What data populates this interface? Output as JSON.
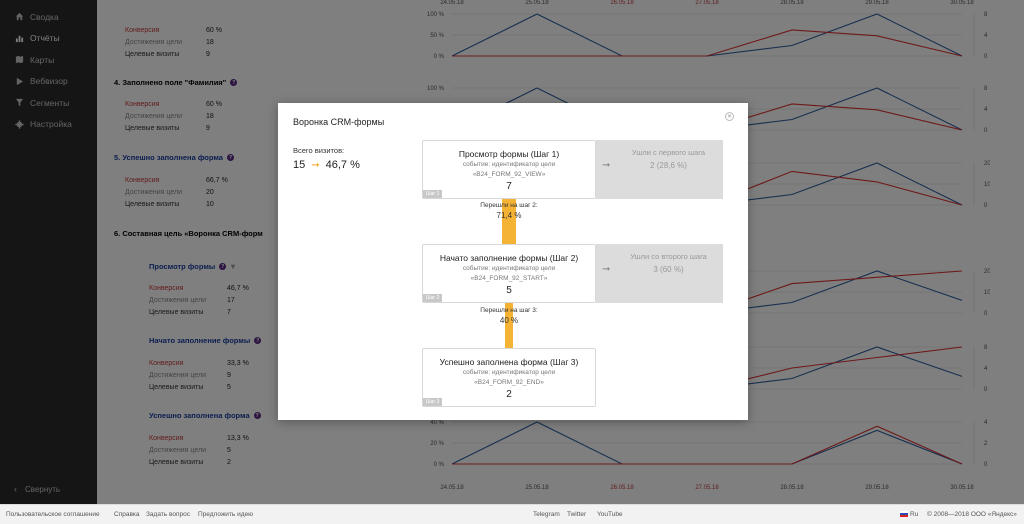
{
  "sidebar": {
    "items": [
      {
        "label": "Сводка",
        "icon": "home-icon"
      },
      {
        "label": "Отчёты",
        "icon": "bar-chart-icon",
        "active": true
      },
      {
        "label": "Карты",
        "icon": "map-icon"
      },
      {
        "label": "Вебвизор",
        "icon": "play-icon"
      },
      {
        "label": "Сегменты",
        "icon": "filter-icon"
      },
      {
        "label": "Настройка",
        "icon": "gear-icon"
      }
    ],
    "collapse_label": "Свернуть"
  },
  "goals": [
    {
      "title": "",
      "metrics": [
        [
          "Конверсия",
          "60 %"
        ],
        [
          "Достижения цели",
          "18"
        ],
        [
          "Целевые визиты",
          "9"
        ]
      ]
    },
    {
      "title": "4.  Заполнено поле \"Фамилия\"",
      "metrics": [
        [
          "Конверсия",
          "60 %"
        ],
        [
          "Достижения цели",
          "18"
        ],
        [
          "Целевые визиты",
          "9"
        ]
      ]
    },
    {
      "title": "5.  Успешно заполнена форма",
      "metrics": [
        [
          "Конверсия",
          "66,7 %"
        ],
        [
          "Достижения цели",
          "20"
        ],
        [
          "Целевые визиты",
          "10"
        ]
      ]
    },
    {
      "title": "6.  Составная цель «Воронка CRM-форм",
      "metrics": []
    },
    {
      "title": "Просмотр формы",
      "metrics": [
        [
          "Конверсия",
          "46,7 %"
        ],
        [
          "Достижения цели",
          "17"
        ],
        [
          "Целевые визиты",
          "7"
        ]
      ]
    },
    {
      "title": "Начато заполнение формы",
      "metrics": [
        [
          "Конверсия",
          "33,3 %"
        ],
        [
          "Достижения цели",
          "9"
        ],
        [
          "Целевые визиты",
          "5"
        ]
      ]
    },
    {
      "title": "Успешно заполнена форма",
      "metrics": [
        [
          "Конверсия",
          "13,3 %"
        ],
        [
          "Достижения цели",
          "5"
        ],
        [
          "Целевые визиты",
          "2"
        ]
      ]
    }
  ],
  "chart_axis": {
    "dates": [
      "24.05.18",
      "25.05.18",
      "26.05.18",
      "27.05.18",
      "28.05.18",
      "29.05.18",
      "30.05.18"
    ],
    "weekend_dates": [
      "26.05.18",
      "27.05.18"
    ]
  },
  "chart_data": [
    {
      "type": "line",
      "left_ticks": [
        "100 %",
        "50 %",
        "0 %"
      ],
      "right_ticks": [
        "8",
        "4",
        "0"
      ],
      "series": [
        {
          "color": "#2f5f9e",
          "values": [
            0,
            100,
            0,
            0,
            25,
            100,
            0
          ]
        },
        {
          "color": "#d33",
          "values": [
            0,
            0,
            0,
            0,
            62,
            48,
            0
          ]
        }
      ]
    },
    {
      "type": "line",
      "left_ticks": [
        "100 %",
        "50 %",
        "0 %"
      ],
      "right_ticks": [
        "8",
        "4",
        "0"
      ],
      "series": [
        {
          "color": "#2f5f9e",
          "values": [
            0,
            100,
            0,
            0,
            25,
            100,
            0
          ]
        },
        {
          "color": "#d33",
          "values": [
            0,
            0,
            0,
            0,
            62,
            48,
            0
          ]
        }
      ]
    },
    {
      "type": "line",
      "left_ticks": [
        "100 %",
        "50 %",
        "0 %"
      ],
      "right_ticks": [
        "20",
        "10",
        "0"
      ],
      "series": [
        {
          "color": "#2f5f9e",
          "values": [
            0,
            100,
            0,
            0,
            25,
            100,
            0
          ]
        },
        {
          "color": "#d33",
          "values": [
            0,
            0,
            0,
            0,
            80,
            55,
            0
          ]
        }
      ]
    },
    {
      "type": "line",
      "left_ticks": [
        "100 %",
        "50 %",
        "0 %"
      ],
      "right_ticks": [
        "20",
        "10",
        "0"
      ],
      "series": [
        {
          "color": "#2f5f9e",
          "values": [
            0,
            100,
            0,
            0,
            25,
            100,
            30
          ]
        },
        {
          "color": "#d33",
          "values": [
            0,
            0,
            0,
            0,
            70,
            85,
            100
          ]
        }
      ]
    },
    {
      "type": "line",
      "left_ticks": [
        "100 %",
        "50 %",
        "0 %"
      ],
      "right_ticks": [
        "8",
        "4",
        "0"
      ],
      "series": [
        {
          "color": "#2f5f9e",
          "values": [
            0,
            100,
            0,
            0,
            25,
            100,
            30
          ]
        },
        {
          "color": "#d33",
          "values": [
            0,
            0,
            0,
            0,
            50,
            75,
            100
          ]
        }
      ]
    },
    {
      "type": "line",
      "left_ticks": [
        "40 %",
        "20 %",
        "0 %"
      ],
      "right_ticks": [
        "4",
        "2",
        "0"
      ],
      "series": [
        {
          "color": "#2f5f9e",
          "values": [
            0,
            100,
            0,
            0,
            0,
            80,
            0
          ]
        },
        {
          "color": "#d33",
          "values": [
            0,
            0,
            0,
            0,
            0,
            90,
            0
          ]
        }
      ]
    }
  ],
  "modal": {
    "title": "Воронка CRM-формы",
    "total_label": "Всего визитов:",
    "total_visits": "15",
    "total_conversion": "46,7 %",
    "steps": [
      {
        "title": "Просмотр формы (Шаг 1)",
        "event": "событие: идентификатор цели",
        "id": "«B24_FORM_92_VIEW»",
        "count": "7",
        "tag": "Шаг 1",
        "left_label": "Ушли с первого шага",
        "left_value": "2 (28,6 %)"
      },
      {
        "title": "Начато заполнение формы (Шаг 2)",
        "event": "событие: идентификатор цели",
        "id": "«B24_FORM_92_START»",
        "count": "5",
        "tag": "Шаг 2",
        "left_label": "Ушли со второго шага",
        "left_value": "3 (60 %)"
      },
      {
        "title": "Успешно заполнена форма (Шаг 3)",
        "event": "событие: идентификатор цели",
        "id": "«B24_FORM_92_END»",
        "count": "2",
        "tag": "Шаг 3"
      }
    ],
    "transitions": [
      {
        "label": "Перешли на шаг 2:",
        "value": "71,4 %",
        "percent": 71.4
      },
      {
        "label": "Перешли на шаг 3:",
        "value": "40 %",
        "percent": 40
      }
    ]
  },
  "footer": {
    "links": [
      "Пользовательское соглашение",
      "Справка",
      "Задать вопрос",
      "Предложить идею"
    ],
    "social": [
      "Telegram",
      "Twitter",
      "YouTube"
    ],
    "lang": "Ru",
    "copyright": "© 2008—2018 ООО «Яндекс»"
  }
}
